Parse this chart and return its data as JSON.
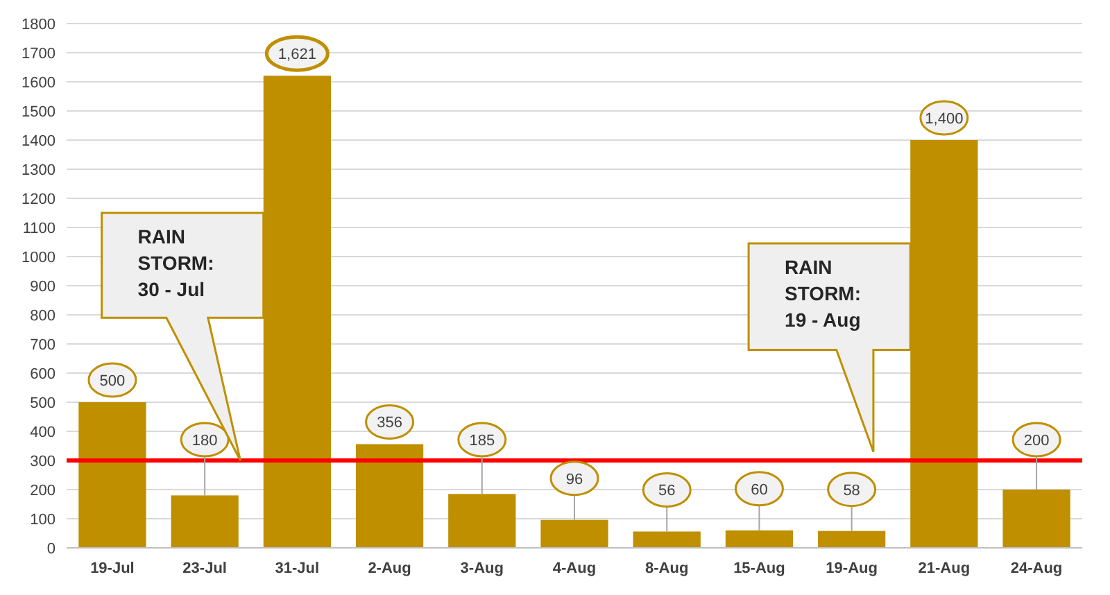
{
  "chart_data": {
    "type": "bar",
    "categories": [
      "19-Jul",
      "23-Jul",
      "31-Jul",
      "2-Aug",
      "3-Aug",
      "4-Aug",
      "8-Aug",
      "15-Aug",
      "19-Aug",
      "21-Aug",
      "24-Aug"
    ],
    "values": [
      500,
      180,
      1621,
      356,
      185,
      96,
      56,
      60,
      58,
      1400,
      200
    ],
    "color": "#bf8f00",
    "value_labels": [
      "500",
      "180",
      "1,621",
      "356",
      "185",
      "96",
      "56",
      "60",
      "58",
      "1,400",
      "200"
    ],
    "ylim": [
      0,
      1800
    ],
    "yticks": [
      0,
      100,
      200,
      300,
      400,
      500,
      600,
      700,
      800,
      900,
      1000,
      1100,
      1200,
      1300,
      1400,
      1500,
      1600,
      1700,
      1800
    ],
    "grid": "y",
    "ref_lines": [
      {
        "axis": "y",
        "value": 300,
        "color": "#ff0000"
      }
    ],
    "annotations": [
      "RAIN STORM: 30 - Jul",
      "RAIN STORM: 19 - Aug"
    ]
  }
}
